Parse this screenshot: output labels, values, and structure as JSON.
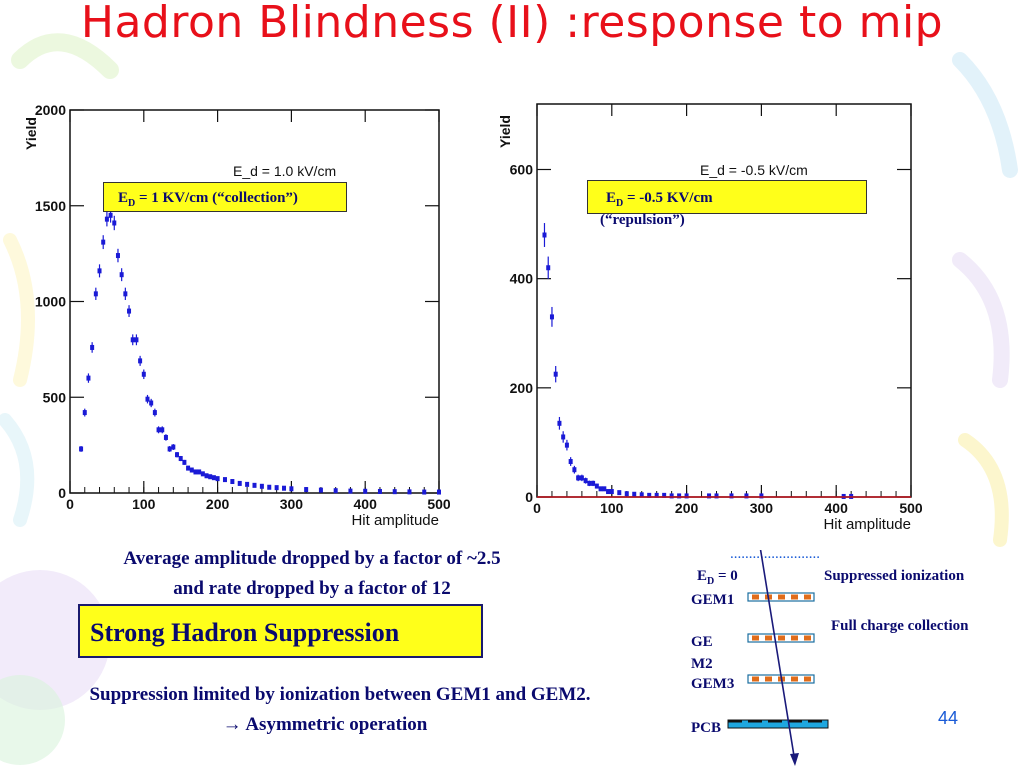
{
  "slide": {
    "title": "Hadron Blindness (II) :response to mip",
    "page_number": "44",
    "summary_line1": "Average amplitude dropped by a factor of ~2.5",
    "summary_line2": "and rate dropped by a factor of  12",
    "strong_box": "Strong Hadron Suppression",
    "limit_line1": "Suppression limited by ionization between GEM1 and GEM2.",
    "limit_line2": "Asymmetric operation",
    "limit_arrow": "→"
  },
  "left_box": {
    "e": "E",
    "sub": "D",
    "text": " = 1 KV/cm (“collection”)"
  },
  "right_box": {
    "e": "E",
    "sub": "D",
    "text": " = -0.5 KV/cm",
    "extra": "(“repulsion”)"
  },
  "diagram": {
    "dots": "........................",
    "ed_label": "E",
    "ed_sub": "D",
    "ed_value": " = 0",
    "suppressed": "Suppressed ionization",
    "full": "Full charge collection",
    "gem1": "GEM1",
    "gem2a": "GE",
    "gem2b": "M2",
    "gem3": "GEM3",
    "pcb": "PCB",
    "colors": {
      "bar": "#e06c1a",
      "pcb": "#1fa7e0",
      "line": "#1a1a7a"
    }
  },
  "chart_data": [
    {
      "type": "scatter",
      "xlabel": "Hit amplitude",
      "ylabel": "Yield",
      "xlim": [
        0,
        500
      ],
      "ylim": [
        0,
        2000
      ],
      "xticks": [
        "0",
        "100",
        "200",
        "300",
        "400",
        "500"
      ],
      "yticks": [
        "0",
        "500",
        "1000",
        "1500",
        "2000"
      ],
      "annotation": "E_d = 1.0 kV/cm",
      "color": "#1a1ad6",
      "x": [
        15,
        20,
        25,
        30,
        35,
        40,
        45,
        50,
        55,
        60,
        65,
        70,
        75,
        80,
        85,
        90,
        95,
        100,
        105,
        110,
        115,
        120,
        125,
        130,
        135,
        140,
        145,
        150,
        155,
        160,
        165,
        170,
        175,
        180,
        185,
        190,
        195,
        200,
        210,
        220,
        230,
        240,
        250,
        260,
        270,
        280,
        290,
        300,
        320,
        340,
        360,
        380,
        400,
        420,
        440,
        460,
        480,
        500
      ],
      "y": [
        230,
        420,
        600,
        760,
        1040,
        1160,
        1310,
        1430,
        1450,
        1410,
        1240,
        1140,
        1040,
        950,
        800,
        800,
        690,
        620,
        490,
        470,
        420,
        330,
        330,
        290,
        230,
        240,
        200,
        180,
        160,
        130,
        120,
        110,
        110,
        100,
        90,
        85,
        80,
        75,
        70,
        60,
        50,
        45,
        40,
        35,
        30,
        28,
        25,
        22,
        18,
        15,
        12,
        10,
        9,
        8,
        7,
        6,
        5,
        5
      ]
    },
    {
      "type": "scatter",
      "xlabel": "Hit amplitude",
      "ylabel": "Yield",
      "xlim": [
        0,
        500
      ],
      "ylim": [
        0,
        720
      ],
      "xticks": [
        "0",
        "100",
        "200",
        "300",
        "400",
        "500"
      ],
      "yticks": [
        "0",
        "200",
        "400",
        "600"
      ],
      "annotation": "E_d = -0.5 kV/cm",
      "color": "#1a1ad6",
      "x": [
        10,
        15,
        20,
        25,
        30,
        35,
        40,
        45,
        50,
        55,
        60,
        65,
        70,
        75,
        80,
        85,
        90,
        95,
        100,
        110,
        120,
        130,
        140,
        150,
        160,
        170,
        180,
        190,
        200,
        230,
        240,
        260,
        280,
        300,
        410,
        420
      ],
      "y": [
        480,
        420,
        330,
        225,
        135,
        110,
        95,
        65,
        50,
        35,
        35,
        30,
        25,
        25,
        20,
        15,
        15,
        10,
        10,
        8,
        6,
        5,
        4,
        3,
        3,
        3,
        2,
        2,
        2,
        2,
        2,
        2,
        2,
        2,
        1,
        1
      ]
    }
  ]
}
